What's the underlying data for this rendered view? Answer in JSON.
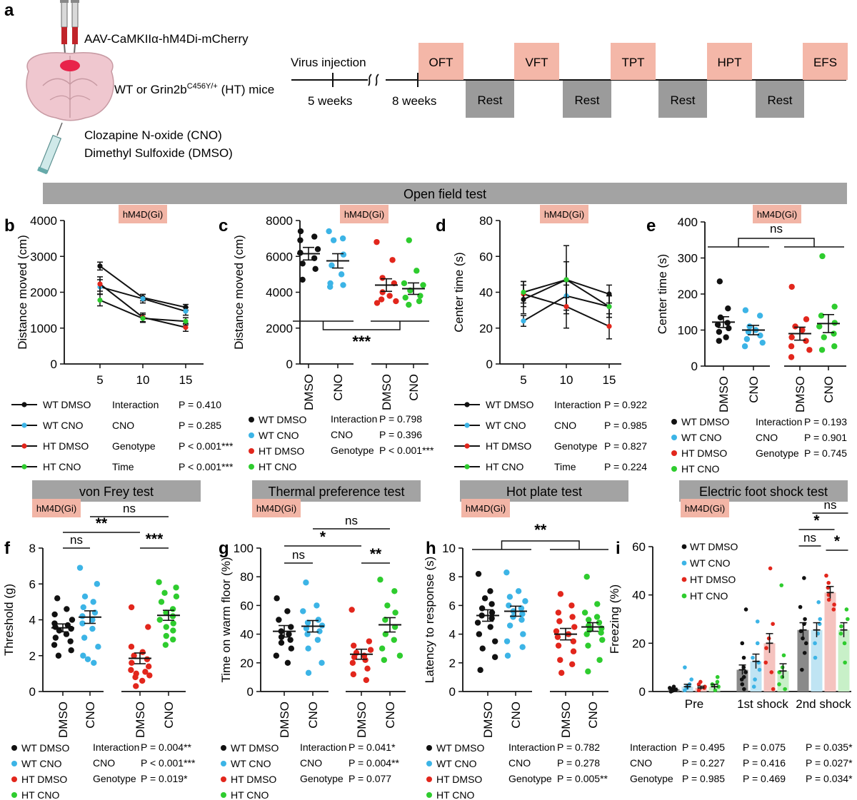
{
  "panel_a": {
    "letter": "a",
    "virus": "AAV-CaMKIIα-hM4Di-mCherry",
    "mice_pre": "WT or Grin2b",
    "mice_sup": "C456Y/+",
    "mice_post": " (HT) mice",
    "drug1": "Clozapine N-oxide (CNO)",
    "drug2": "Dimethyl Sulfoxide (DMSO)",
    "timeline": {
      "injection": "Virus injection",
      "t1": "5 weeks",
      "t2": "8 weeks",
      "tests": [
        "OFT",
        "VFT",
        "TPT",
        "HPT",
        "EFS"
      ],
      "rest": "Rest"
    }
  },
  "colors": {
    "wt_dmso": "#111111",
    "wt_cno": "#3cb4e6",
    "ht_dmso": "#e2261c",
    "ht_cno": "#2ecc2e",
    "test_bar": "#a3a3a3",
    "badge": "#f2b5a6",
    "timeline_test": "#f4b7a8",
    "timeline_rest": "#9b9b9b"
  },
  "badge": "hM4D(Gi)",
  "sections": {
    "oft": "Open field test",
    "vft": "von Frey test",
    "tpt": "Thermal preference test",
    "hpt": "Hot plate test",
    "efs": "Electric foot shock test"
  },
  "groups": [
    "WT DMSO",
    "WT CNO",
    "HT DMSO",
    "HT CNO"
  ],
  "xcat": [
    "DMSO",
    "CNO",
    "DMSO",
    "CNO"
  ],
  "chart_data": [
    {
      "panel": "b",
      "type": "line",
      "xlabel": "",
      "ylabel": "Distance moved (cm)",
      "x": [
        5,
        10,
        15
      ],
      "ylim": [
        0,
        4000
      ],
      "yticks": [
        0,
        1000,
        2000,
        3000,
        4000
      ],
      "series": [
        {
          "name": "WT DMSO",
          "values": [
            2730,
            1850,
            1580
          ],
          "err": [
            110,
            90,
            80
          ]
        },
        {
          "name": "WT CNO",
          "values": [
            2150,
            1820,
            1470
          ],
          "err": [
            200,
            120,
            110
          ]
        },
        {
          "name": "HT DMSO",
          "values": [
            2230,
            1300,
            1020
          ],
          "err": [
            200,
            120,
            110
          ]
        },
        {
          "name": "HT CNO",
          "values": [
            1780,
            1270,
            1190
          ],
          "err": [
            160,
            110,
            100
          ]
        }
      ],
      "stats": [
        [
          "Interaction",
          "P = 0.410"
        ],
        [
          "CNO",
          "P = 0.285"
        ],
        [
          "Genotype",
          "P < 0.001***"
        ],
        [
          "Time",
          "P < 0.001***"
        ]
      ]
    },
    {
      "panel": "c",
      "type": "scatter",
      "ylabel": "Distance moved (cm)",
      "ylim": [
        0,
        8000
      ],
      "yticks": [
        0,
        2000,
        4000,
        6000,
        8000
      ],
      "means": [
        6150,
        5750,
        4400,
        4200
      ],
      "sems": [
        350,
        400,
        350,
        320
      ],
      "points": [
        [
          7400,
          7100,
          6900,
          6400,
          6200,
          5900,
          5600,
          5300,
          4700
        ],
        [
          7400,
          7000,
          6900,
          6100,
          5500,
          5000,
          4500,
          4400,
          4300
        ],
        [
          6800,
          5800,
          4800,
          4500,
          4000,
          3800,
          3600,
          3500,
          3400
        ],
        [
          6900,
          5200,
          4500,
          4400,
          4100,
          3800,
          3700,
          3500,
          3300
        ]
      ],
      "sig": "***",
      "stats": [
        [
          "Interaction",
          "P = 0.798"
        ],
        [
          "CNO",
          "P = 0.396"
        ],
        [
          "Genotype",
          "P < 0.001***"
        ]
      ]
    },
    {
      "panel": "d",
      "type": "line",
      "ylabel": "Center time (s)",
      "x": [
        5,
        10,
        15
      ],
      "ylim": [
        0,
        80
      ],
      "yticks": [
        0,
        20,
        40,
        60,
        80
      ],
      "series": [
        {
          "name": "WT DMSO",
          "values": [
            36,
            47,
            39
          ],
          "err": [
            8,
            19,
            5
          ]
        },
        {
          "name": "WT CNO",
          "values": [
            24,
            38,
            32
          ],
          "err": [
            3,
            8,
            6
          ]
        },
        {
          "name": "HT DMSO",
          "values": [
            39,
            32,
            21
          ],
          "err": [
            7,
            12,
            7
          ]
        },
        {
          "name": "HT CNO",
          "values": [
            40,
            47,
            32
          ],
          "err": [
            6,
            10,
            6
          ]
        }
      ],
      "stats": [
        [
          "Interaction",
          "P = 0.922"
        ],
        [
          "CNO",
          "P = 0.985"
        ],
        [
          "Genotype",
          "P = 0.827"
        ],
        [
          "Time",
          "P = 0.224"
        ]
      ]
    },
    {
      "panel": "e",
      "type": "scatter",
      "ylabel": "Center time (s)",
      "ylim": [
        0,
        400
      ],
      "yticks": [
        0,
        100,
        200,
        300,
        400
      ],
      "means": [
        122,
        100,
        90,
        118
      ],
      "sems": [
        15,
        13,
        18,
        25
      ],
      "points": [
        [
          235,
          160,
          135,
          120,
          115,
          105,
          95,
          80,
          70
        ],
        [
          155,
          140,
          110,
          100,
          95,
          85,
          75,
          65,
          55
        ],
        [
          220,
          130,
          110,
          100,
          80,
          70,
          55,
          45,
          25
        ],
        [
          305,
          165,
          140,
          120,
          110,
          90,
          80,
          55,
          45
        ]
      ],
      "sig": "ns",
      "stats": [
        [
          "Interaction",
          "P = 0.193"
        ],
        [
          "CNO",
          "P = 0.901"
        ],
        [
          "Genotype",
          "P = 0.745"
        ]
      ]
    },
    {
      "panel": "f",
      "type": "scatter",
      "ylabel": "Threshold (g)",
      "ylim": [
        0,
        8
      ],
      "yticks": [
        0,
        2,
        4,
        6,
        8
      ],
      "means": [
        3.55,
        4.15,
        1.85,
        4.25
      ],
      "sems": [
        0.22,
        0.35,
        0.3,
        0.28
      ],
      "points": [
        [
          5.2,
          4.6,
          4.3,
          4.0,
          3.8,
          3.7,
          3.6,
          3.5,
          3.4,
          3.2,
          3.0,
          2.8,
          2.6,
          2.3,
          2.0
        ],
        [
          6.9,
          6.0,
          5.3,
          5.0,
          4.7,
          4.4,
          4.2,
          4.0,
          3.8,
          3.5,
          3.0,
          2.5,
          2.0,
          1.6,
          1.8
        ],
        [
          4.7,
          3.6,
          2.5,
          2.2,
          2.0,
          1.8,
          1.6,
          1.4,
          1.2,
          1.1,
          1.0,
          0.9,
          0.8,
          0.6,
          0.3
        ],
        [
          6.1,
          5.8,
          5.5,
          5.3,
          5.0,
          4.6,
          4.4,
          4.2,
          4.0,
          3.8,
          3.6,
          3.4,
          3.1,
          2.9,
          2.6
        ]
      ],
      "sigs": [
        "ns",
        "**",
        "***",
        "ns"
      ],
      "stats": [
        [
          "Interaction",
          "P = 0.004**"
        ],
        [
          "CNO",
          "P < 0.001***"
        ],
        [
          "Genotype",
          "P = 0.019*"
        ]
      ]
    },
    {
      "panel": "g",
      "type": "scatter",
      "ylabel": "Time on warm floor (%)",
      "ylim": [
        0,
        100
      ],
      "yticks": [
        0,
        20,
        40,
        60,
        80,
        100
      ],
      "means": [
        42,
        45.5,
        26,
        46.5
      ],
      "sems": [
        4,
        4,
        3.5,
        5
      ],
      "points": [
        [
          65,
          56,
          50,
          45,
          42,
          40,
          38,
          36,
          34,
          30,
          25,
          20
        ],
        [
          76,
          60,
          56,
          50,
          48,
          46,
          44,
          42,
          40,
          36,
          30,
          20,
          13
        ],
        [
          57,
          35,
          32,
          29,
          27,
          25,
          24,
          22,
          20,
          16,
          12,
          8
        ],
        [
          78,
          70,
          60,
          55,
          50,
          45,
          40,
          36,
          30,
          25,
          22
        ]
      ],
      "sigs": [
        "ns",
        "*",
        "**",
        "ns"
      ],
      "stats": [
        [
          "Interaction",
          "P = 0.041*"
        ],
        [
          "CNO",
          "P = 0.004**"
        ],
        [
          "Genotype",
          "P = 0.077"
        ]
      ]
    },
    {
      "panel": "h",
      "type": "scatter",
      "ylabel": "Latency to response (s)",
      "ylim": [
        0,
        10
      ],
      "yticks": [
        0,
        2,
        4,
        6,
        8,
        10
      ],
      "means": [
        5.3,
        5.6,
        4.0,
        4.5
      ],
      "sems": [
        0.4,
        0.35,
        0.4,
        0.3
      ],
      "points": [
        [
          8.2,
          7.0,
          6.5,
          6.1,
          5.8,
          5.5,
          5.3,
          5.1,
          4.8,
          4.5,
          4.0,
          3.5,
          3.0,
          2.4,
          1.5
        ],
        [
          8.3,
          7.0,
          6.6,
          6.3,
          6.0,
          5.8,
          5.6,
          5.4,
          5.2,
          5.0,
          4.6,
          4.0,
          3.5,
          3.1,
          2.5
        ],
        [
          6.8,
          6.0,
          5.5,
          5.2,
          4.9,
          4.5,
          4.2,
          4.0,
          3.8,
          3.5,
          3.2,
          2.8,
          2.2,
          1.9,
          1.3
        ],
        [
          8.0,
          6.1,
          5.5,
          5.2,
          5.0,
          4.8,
          4.6,
          4.4,
          4.3,
          4.1,
          4.0,
          3.6,
          3.2,
          2.2,
          1.4
        ]
      ],
      "sig": "**",
      "stats": [
        [
          "Interaction",
          "P = 0.782"
        ],
        [
          "CNO",
          "P = 0.278"
        ],
        [
          "Genotype",
          "P = 0.005**"
        ]
      ]
    },
    {
      "panel": "i",
      "type": "bar",
      "ylabel": "Freezing (%)",
      "categories": [
        "Pre",
        "1st shock",
        "2nd shock"
      ],
      "ylim": [
        0,
        60
      ],
      "yticks": [
        0,
        20,
        40,
        60
      ],
      "series": [
        {
          "name": "WT DMSO",
          "values": [
            1,
            9,
            25.5
          ],
          "err": [
            0.4,
            2,
            3
          ]
        },
        {
          "name": "WT CNO",
          "values": [
            2,
            12.5,
            25.5
          ],
          "err": [
            1,
            3,
            3
          ]
        },
        {
          "name": "HT DMSO",
          "values": [
            1.5,
            20,
            41
          ],
          "err": [
            0.7,
            4,
            2.5
          ]
        },
        {
          "name": "HT CNO",
          "values": [
            2,
            8.5,
            25.5
          ],
          "err": [
            1,
            3,
            3
          ]
        }
      ],
      "points": [
        [
          [
            0,
            0.5,
            1,
            1.5,
            2,
            0.3,
            0.8
          ],
          [
            34,
            20,
            14,
            10,
            8,
            6,
            5,
            3,
            1
          ],
          [
            47,
            35,
            30,
            28,
            25,
            22,
            20,
            16,
            9
          ]
        ],
        [
          [
            0.5,
            1.5,
            3,
            5,
            10,
            2
          ],
          [
            29,
            20,
            14,
            12,
            9,
            5,
            2
          ],
          [
            37,
            30,
            28,
            24,
            20,
            14
          ]
        ],
        [
          [
            0.5,
            1.5,
            3,
            4,
            2
          ],
          [
            51,
            28,
            22,
            18,
            12,
            8,
            1
          ],
          [
            48,
            45,
            43,
            40,
            38,
            36,
            34
          ]
        ],
        [
          [
            0.5,
            2,
            4,
            6,
            3
          ],
          [
            44,
            15,
            10,
            8,
            6,
            3,
            1
          ],
          [
            34,
            30,
            27,
            24,
            20,
            12
          ]
        ]
      ],
      "sigs": [
        "ns",
        "*",
        "ns",
        "*"
      ],
      "stats_rows": [
        [
          "Interaction",
          "P = 0.495",
          "P = 0.075",
          "P = 0.035*"
        ],
        [
          "CNO",
          "P = 0.227",
          "P = 0.416",
          "P = 0.027*"
        ],
        [
          "Genotype",
          "P = 0.985",
          "P = 0.469",
          "P = 0.034*"
        ]
      ]
    }
  ]
}
